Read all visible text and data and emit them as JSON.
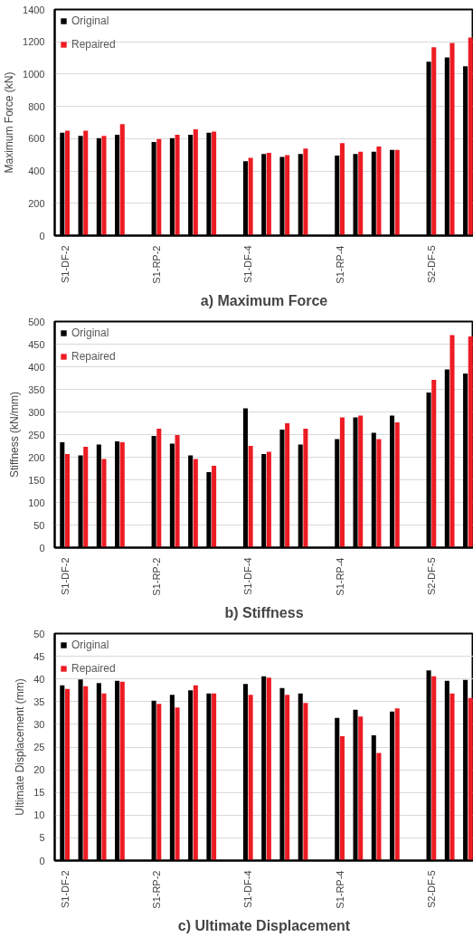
{
  "chart_data": [
    {
      "type": "bar",
      "title": "a) Maximum Force",
      "ylabel": "Maximum Force (kN)",
      "categories": [
        "S1-DF-2",
        null,
        null,
        null,
        null,
        "S1-RP-2",
        null,
        null,
        null,
        null,
        "S1-DF-4",
        null,
        null,
        null,
        null,
        "S1-RP-4",
        null,
        null,
        null,
        null,
        "S2-DF-5",
        null,
        null
      ],
      "series": [
        {
          "name": "Original",
          "color": "#000000",
          "values": [
            637,
            618,
            604,
            625,
            null,
            579,
            604,
            625,
            637,
            null,
            460,
            506,
            487,
            506,
            null,
            495,
            506,
            520,
            531,
            null,
            1076,
            1103,
            1049
          ]
        },
        {
          "name": "Repaired",
          "color": "#ed1c24",
          "values": [
            650,
            650,
            618,
            690,
            null,
            598,
            625,
            658,
            644,
            null,
            481,
            512,
            499,
            539,
            null,
            572,
            520,
            552,
            531,
            null,
            1166,
            1193,
            1227
          ]
        }
      ],
      "ylim": [
        0,
        1400
      ],
      "yticks": [
        0,
        200,
        400,
        600,
        800,
        1000,
        1200,
        1400
      ],
      "grid": "y",
      "legend": "top left"
    },
    {
      "type": "bar",
      "title": "b) Stiffness",
      "ylabel": "Stiffness (kN/mm)",
      "categories": [
        "S1-DF-2",
        null,
        null,
        null,
        null,
        "S1-RP-2",
        null,
        null,
        null,
        null,
        "S1-DF-4",
        null,
        null,
        null,
        null,
        "S1-RP-4",
        null,
        null,
        null,
        null,
        "S2-DF-5",
        null,
        null
      ],
      "series": [
        {
          "name": "Original",
          "color": "#000000",
          "values": [
            233,
            204,
            228,
            235,
            null,
            247,
            230,
            204,
            167,
            null,
            308,
            207,
            261,
            228,
            null,
            240,
            288,
            254,
            292,
            null,
            343,
            394,
            385
          ]
        },
        {
          "name": "Repaired",
          "color": "#ed1c24",
          "values": [
            207,
            223,
            196,
            233,
            null,
            263,
            249,
            196,
            181,
            null,
            225,
            212,
            275,
            263,
            null,
            288,
            292,
            240,
            277,
            null,
            371,
            470,
            467
          ]
        }
      ],
      "ylim": [
        0,
        500
      ],
      "yticks": [
        0,
        50,
        100,
        150,
        200,
        250,
        300,
        350,
        400,
        450,
        500
      ],
      "grid": "y",
      "legend": "top left"
    },
    {
      "type": "bar",
      "title": "c) Ultimate Displacement",
      "ylabel": "Ultimate Displacement (mm)",
      "categories": [
        "S1-DF-2",
        null,
        null,
        null,
        null,
        "S1-RP-2",
        null,
        null,
        null,
        null,
        "S1-DF-4",
        null,
        null,
        null,
        null,
        "S1-RP-4",
        null,
        null,
        null,
        null,
        "S2-DF-5",
        null,
        null
      ],
      "series": [
        {
          "name": "Original",
          "color": "#000000",
          "values": [
            38.6,
            39.9,
            39.1,
            39.6,
            null,
            35.2,
            36.5,
            37.5,
            36.8,
            null,
            38.9,
            40.6,
            38.0,
            36.8,
            null,
            31.4,
            33.2,
            27.6,
            32.8,
            null,
            41.9,
            39.6,
            39.8
          ]
        },
        {
          "name": "Repaired",
          "color": "#ed1c24",
          "values": [
            37.8,
            38.4,
            36.8,
            39.4,
            null,
            34.5,
            33.7,
            38.6,
            36.8,
            null,
            36.5,
            40.3,
            36.5,
            34.7,
            null,
            27.4,
            31.7,
            23.7,
            33.5,
            null,
            40.6,
            36.8,
            35.8
          ]
        }
      ],
      "ylim": [
        0,
        50
      ],
      "yticks": [
        0,
        5,
        10,
        15,
        20,
        25,
        30,
        35,
        40,
        45,
        50
      ],
      "grid": "y",
      "legend": "top left"
    }
  ]
}
